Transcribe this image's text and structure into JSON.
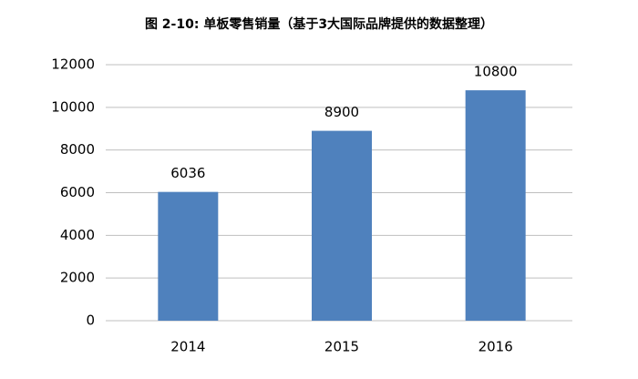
{
  "chart_data": {
    "type": "bar",
    "title": "图 2-10: 单板零售销量（基于3大国际品牌提供的数据整理）",
    "categories": [
      "2014",
      "2015",
      "2016"
    ],
    "values": [
      6036,
      8900,
      10800
    ],
    "color": "#4f81bd",
    "ylim": [
      0,
      12000
    ],
    "yticks": [
      0,
      2000,
      4000,
      6000,
      8000,
      10000,
      12000
    ],
    "grid": true
  }
}
